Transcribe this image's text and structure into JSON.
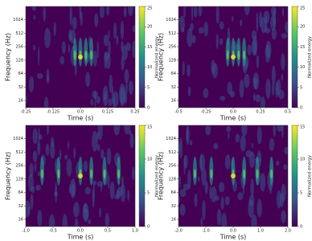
{
  "chart_data": [
    {
      "type": "spectrogram",
      "xlabel": "Time (s)",
      "ylabel": "Frequency (Hz)",
      "colorbar_label": "Normalized energy",
      "xlim": [
        -0.25,
        0.25
      ],
      "xticks": [
        -0.25,
        -0.125,
        {
          "value": 0,
          "label": "0.0"
        },
        0.125,
        0.25
      ],
      "ylim": [
        11,
        2048
      ],
      "yticks": [
        16,
        32,
        64,
        128,
        256,
        512,
        1024
      ],
      "y_scale": "log",
      "clim": [
        0,
        25
      ],
      "cticks": [
        0,
        5,
        10,
        15,
        20,
        25
      ],
      "colormap": [
        "#440154",
        "#3b528b",
        "#21918c",
        "#5ec962",
        "#fde725"
      ]
    },
    {
      "type": "spectrogram",
      "xlabel": "Time (s)",
      "ylabel": "Frequency (Hz)",
      "colorbar_label": "Normalized energy",
      "xlim": [
        -0.5,
        0.5
      ],
      "xticks": [
        -0.5,
        -0.25,
        {
          "value": 0,
          "label": "0.0"
        },
        0.25,
        0.5
      ],
      "ylim": [
        11,
        2048
      ],
      "yticks": [
        16,
        32,
        64,
        128,
        256,
        512,
        1024
      ],
      "y_scale": "log",
      "clim": [
        0,
        25
      ],
      "cticks": [
        0,
        5,
        10,
        15,
        20,
        25
      ],
      "colormap": [
        "#440154",
        "#3b528b",
        "#21918c",
        "#5ec962",
        "#fde725"
      ]
    },
    {
      "type": "spectrogram",
      "xlabel": "Time (s)",
      "ylabel": "Frequency (Hz)",
      "colorbar_label": "Normalized energy",
      "xlim": [
        -1,
        1
      ],
      "xticks": [
        {
          "value": -1,
          "label": "-1.0"
        },
        -0.5,
        {
          "value": 0,
          "label": "0.0"
        },
        0.5,
        {
          "value": 1,
          "label": "1.0"
        }
      ],
      "ylim": [
        11,
        2048
      ],
      "yticks": [
        16,
        32,
        64,
        128,
        256,
        512,
        1024
      ],
      "y_scale": "log",
      "clim": [
        0,
        15
      ],
      "cticks": [
        0,
        5,
        10,
        15
      ],
      "colormap": [
        "#440154",
        "#3b528b",
        "#21918c",
        "#5ec962",
        "#fde725"
      ]
    },
    {
      "type": "spectrogram",
      "xlabel": "Time (s)",
      "ylabel": "Frequency (Hz)",
      "colorbar_label": "Normalized energy",
      "xlim": [
        -2,
        2
      ],
      "xticks": [
        {
          "value": -2,
          "label": "-2.0"
        },
        {
          "value": -1,
          "label": "-1.0"
        },
        {
          "value": 0,
          "label": "0.0"
        },
        {
          "value": 1,
          "label": "1.0"
        },
        {
          "value": 2,
          "label": "2.0"
        }
      ],
      "ylim": [
        11,
        2048
      ],
      "yticks": [
        16,
        32,
        64,
        128,
        256,
        512,
        1024
      ],
      "y_scale": "log",
      "clim": [
        0,
        15
      ],
      "cticks": [
        0,
        5,
        10,
        15
      ],
      "colormap": [
        "#440154",
        "#3b528b",
        "#21918c",
        "#5ec962",
        "#fde725"
      ]
    }
  ]
}
